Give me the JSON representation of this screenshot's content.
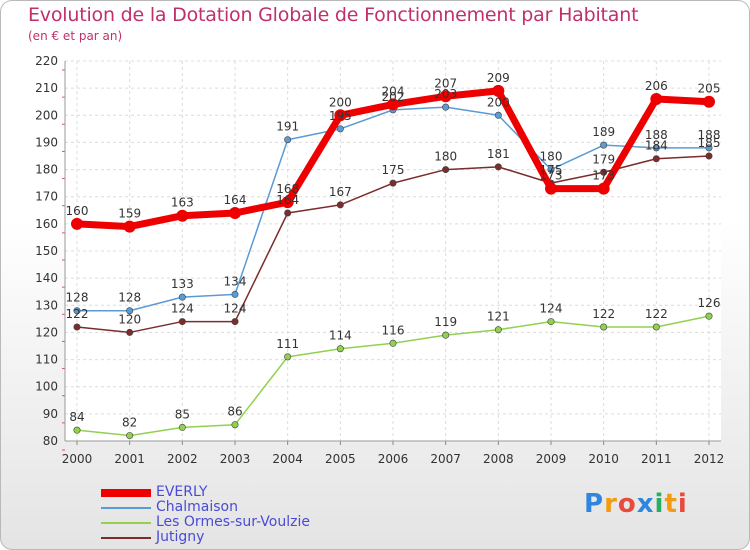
{
  "header": {
    "title": "Evolution de la Dotation Globale de Fonctionnement par Habitant",
    "subtitle": "(en € et par an)"
  },
  "chart_data": {
    "type": "line",
    "title": "Evolution de la Dotation Globale de Fonctionnement par Habitant",
    "subtitle": "(en € et par an)",
    "xlabel": "",
    "ylabel": "",
    "ylim": [
      80,
      220
    ],
    "yticks": [
      80,
      90,
      100,
      110,
      120,
      130,
      140,
      150,
      160,
      170,
      180,
      190,
      200,
      210,
      220
    ],
    "grid": true,
    "legend_position": "bottom-left",
    "categories": [
      "2000",
      "2001",
      "2002",
      "2003",
      "2004",
      "2005",
      "2006",
      "2007",
      "2008",
      "2009",
      "2010",
      "2011",
      "2012"
    ],
    "series": [
      {
        "name": "EVERLY",
        "color": "#ee0000",
        "values": [
          160,
          159,
          163,
          164,
          168,
          200,
          204,
          207,
          209,
          173,
          173,
          206,
          205
        ]
      },
      {
        "name": "Chalmaison",
        "color": "#5b9bd5",
        "values": [
          128,
          128,
          133,
          134,
          191,
          195,
          202,
          203,
          200,
          180,
          189,
          188,
          188
        ]
      },
      {
        "name": "Les Ormes-sur-Voulzie",
        "color": "#92d050",
        "values": [
          84,
          82,
          85,
          86,
          111,
          114,
          116,
          119,
          121,
          124,
          122,
          122,
          126
        ]
      },
      {
        "name": "Jutigny",
        "color": "#7b2c2c",
        "values": [
          122,
          120,
          124,
          124,
          164,
          167,
          175,
          180,
          181,
          175,
          179,
          184,
          185
        ]
      }
    ]
  },
  "logo": {
    "letters": [
      "P",
      "r",
      "o",
      "x",
      "i",
      "t",
      "i"
    ],
    "colors": [
      "#2e86de",
      "#f39c12",
      "#e74c3c",
      "#2e86de",
      "#27ae60",
      "#f39c12",
      "#e74c3c"
    ]
  }
}
